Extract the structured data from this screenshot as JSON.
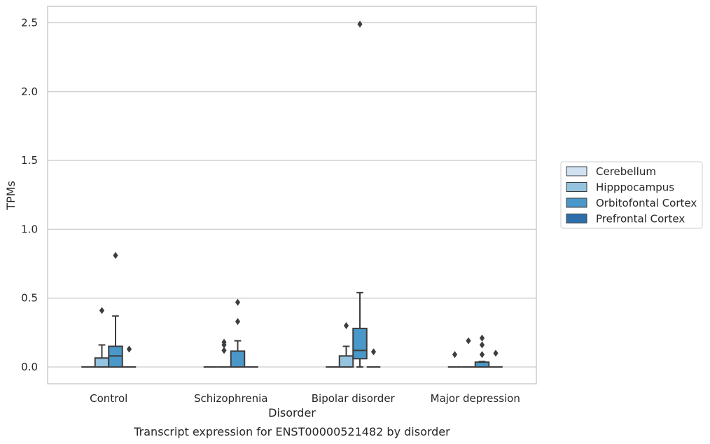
{
  "chart_data": {
    "type": "box",
    "title": "",
    "caption": "Transcript expression for ENST00000521482 by disorder",
    "xlabel": "Disorder",
    "ylabel": "TPMs",
    "ylim": [
      -0.12,
      2.62
    ],
    "yticks": [
      0.0,
      0.5,
      1.0,
      1.5,
      2.0,
      2.5
    ],
    "ytick_labels": [
      "0.0",
      "0.5",
      "1.0",
      "1.5",
      "2.0",
      "2.5"
    ],
    "grid": "horizontal",
    "legend_position": "right",
    "categories": [
      "Control",
      "Schizophrenia",
      "Bipolar disorder",
      "Major depression"
    ],
    "series": [
      {
        "name": "Cerebellum",
        "color": "#d0e1f2",
        "boxes": [
          {
            "q1": 0,
            "median": 0,
            "q3": 0,
            "whisker_low": 0,
            "whisker_high": 0,
            "outliers": []
          },
          {
            "q1": 0,
            "median": 0,
            "q3": 0,
            "whisker_low": 0,
            "whisker_high": 0,
            "outliers": []
          },
          {
            "q1": 0,
            "median": 0,
            "q3": 0,
            "whisker_low": 0,
            "whisker_high": 0,
            "outliers": []
          },
          {
            "q1": 0,
            "median": 0,
            "q3": 0,
            "whisker_low": 0,
            "whisker_high": 0,
            "outliers": [
              0.09
            ]
          }
        ]
      },
      {
        "name": "Hipppocampus",
        "color": "#94c4df",
        "boxes": [
          {
            "q1": 0,
            "median": 0,
            "q3": 0.065,
            "whisker_low": 0,
            "whisker_high": 0.16,
            "outliers": [
              0.41
            ]
          },
          {
            "q1": 0,
            "median": 0,
            "q3": 0,
            "whisker_low": 0,
            "whisker_high": 0,
            "outliers": [
              0.12,
              0.16,
              0.18
            ]
          },
          {
            "q1": 0,
            "median": 0,
            "q3": 0.08,
            "whisker_low": 0,
            "whisker_high": 0.15,
            "outliers": [
              0.3
            ]
          },
          {
            "q1": 0,
            "median": 0,
            "q3": 0,
            "whisker_low": 0,
            "whisker_high": 0,
            "outliers": [
              0.19
            ]
          }
        ]
      },
      {
        "name": "Orbitofontal Cortex",
        "color": "#4a98c9",
        "boxes": [
          {
            "q1": 0,
            "median": 0.08,
            "q3": 0.15,
            "whisker_low": 0,
            "whisker_high": 0.37,
            "outliers": [
              0.81
            ]
          },
          {
            "q1": 0,
            "median": 0,
            "q3": 0.115,
            "whisker_low": 0,
            "whisker_high": 0.19,
            "outliers": [
              0.33,
              0.47
            ]
          },
          {
            "q1": 0.06,
            "median": 0.12,
            "q3": 0.28,
            "whisker_low": 0,
            "whisker_high": 0.54,
            "outliers": [
              2.49
            ]
          },
          {
            "q1": 0,
            "median": 0,
            "q3": 0.035,
            "whisker_low": 0,
            "whisker_high": 0.04,
            "outliers": [
              0.09,
              0.16,
              0.21
            ]
          }
        ]
      },
      {
        "name": "Prefrontal Cortex",
        "color": "#2e6fab",
        "boxes": [
          {
            "q1": 0,
            "median": 0,
            "q3": 0,
            "whisker_low": 0,
            "whisker_high": 0,
            "outliers": [
              0.13
            ]
          },
          {
            "q1": 0,
            "median": 0,
            "q3": 0,
            "whisker_low": 0,
            "whisker_high": 0,
            "outliers": []
          },
          {
            "q1": 0,
            "median": 0,
            "q3": 0,
            "whisker_low": 0,
            "whisker_high": 0,
            "outliers": [
              0.11
            ]
          },
          {
            "q1": 0,
            "median": 0,
            "q3": 0,
            "whisker_low": 0,
            "whisker_high": 0,
            "outliers": [
              0.1
            ]
          }
        ]
      }
    ]
  }
}
